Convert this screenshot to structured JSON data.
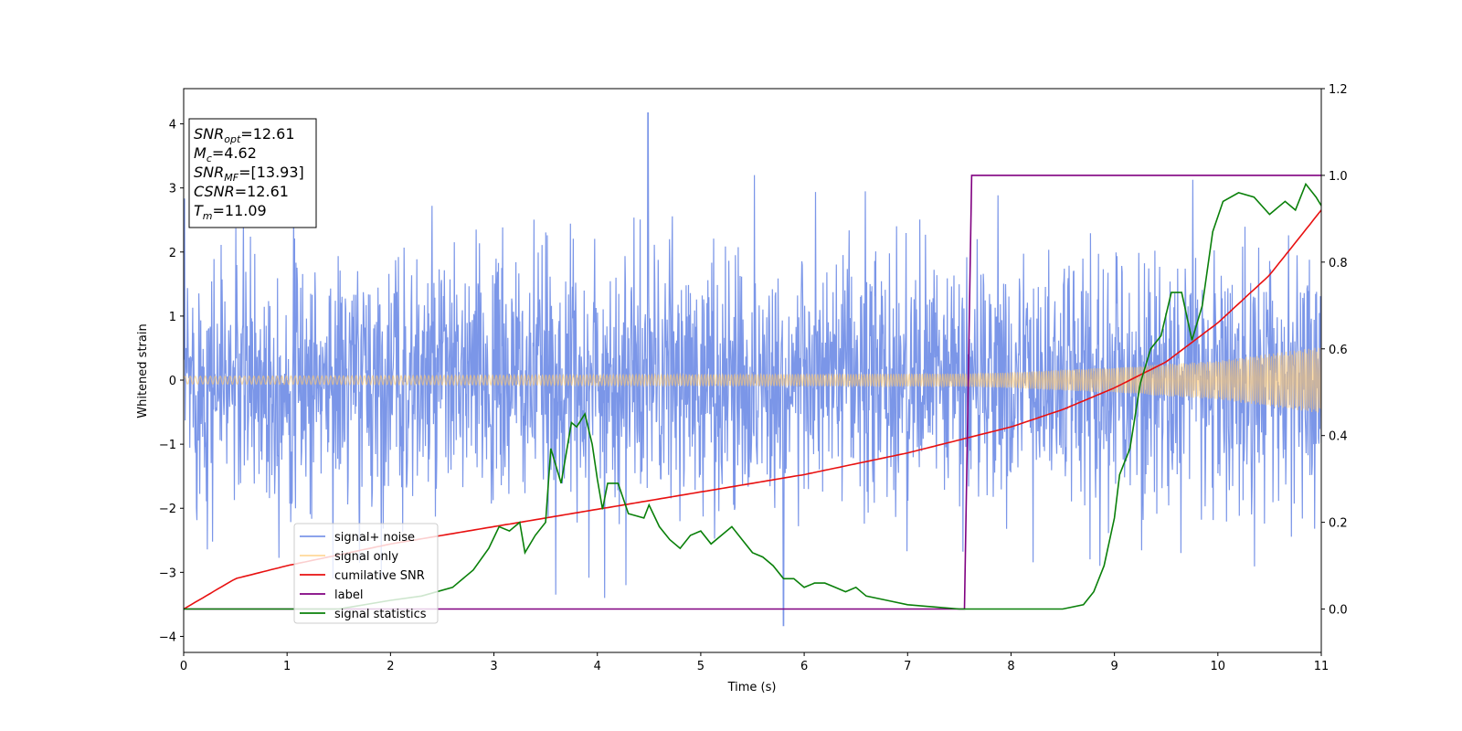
{
  "chart_data": {
    "type": "line",
    "xlabel": "Time (s)",
    "ylabel": "Whitened strain",
    "xlim": [
      0,
      11
    ],
    "ylim": [
      -4.25,
      4.55
    ],
    "y2lim": [
      -0.1,
      1.2
    ],
    "x_ticks": [
      "0",
      "1",
      "2",
      "3",
      "4",
      "5",
      "6",
      "7",
      "8",
      "9",
      "10",
      "11"
    ],
    "y_ticks": [
      "4",
      "3",
      "2",
      "1",
      "0",
      "−1",
      "−2",
      "−3",
      "−4"
    ],
    "y2_ticks": [
      "1.2",
      "1.0",
      "0.8",
      "0.6",
      "0.4",
      "0.2",
      "0.0"
    ],
    "legend_position": "lower-left",
    "annotations": [
      {
        "name": "SNR",
        "sub": "opt",
        "value": "=12.61"
      },
      {
        "name": "M",
        "sub": "c",
        "value": "=4.62"
      },
      {
        "name": "SNR",
        "sub": "MF",
        "value": "=[13.93]"
      },
      {
        "name": "CSNR",
        "sub": "",
        "value": "=12.61"
      },
      {
        "name": "T",
        "sub": "m",
        "value": "=11.09"
      }
    ],
    "series": [
      {
        "name": "signal+ noise",
        "color": "#7b96e8",
        "axis": "left",
        "description_type": "noise",
        "noise_sigma": 1.0,
        "max_peak": 4.17,
        "peak_at": 4.49,
        "min_trough": -3.83,
        "trough_at": 5.8
      },
      {
        "name": "signal only",
        "color": "#ffc86e",
        "axis": "left",
        "envelope_x": [
          0,
          7.5,
          8,
          9,
          10,
          11
        ],
        "envelope_amp": [
          0.06,
          0.1,
          0.12,
          0.2,
          0.3,
          0.52
        ]
      },
      {
        "name": "cumilative SNR",
        "color": "#e81010",
        "axis": "right",
        "x": [
          0,
          0.5,
          1,
          2,
          3,
          4,
          5,
          6,
          7,
          7.5,
          8,
          8.5,
          9,
          9.5,
          10,
          10.5,
          11
        ],
        "y": [
          0.0,
          0.07,
          0.1,
          0.15,
          0.19,
          0.23,
          0.27,
          0.31,
          0.36,
          0.39,
          0.42,
          0.46,
          0.51,
          0.57,
          0.66,
          0.77,
          0.92
        ]
      },
      {
        "name": "label",
        "color": "#800080",
        "axis": "right",
        "x": [
          0,
          7.55,
          7.62,
          11
        ],
        "y": [
          0,
          0,
          1,
          1
        ]
      },
      {
        "name": "signal statistics",
        "color": "#0a800a",
        "axis": "right",
        "x": [
          0,
          0.5,
          1,
          1.5,
          2,
          2.3,
          2.6,
          2.8,
          2.95,
          3.05,
          3.15,
          3.25,
          3.3,
          3.4,
          3.5,
          3.55,
          3.65,
          3.75,
          3.8,
          3.88,
          3.95,
          4.0,
          4.05,
          4.1,
          4.2,
          4.3,
          4.45,
          4.5,
          4.6,
          4.7,
          4.8,
          4.9,
          5.0,
          5.1,
          5.2,
          5.3,
          5.4,
          5.5,
          5.6,
          5.7,
          5.8,
          5.9,
          6.0,
          6.1,
          6.2,
          6.3,
          6.4,
          6.5,
          6.6,
          6.8,
          7.0,
          7.5,
          8,
          8.5,
          8.7,
          8.8,
          8.9,
          9.0,
          9.05,
          9.15,
          9.25,
          9.35,
          9.45,
          9.55,
          9.65,
          9.75,
          9.85,
          9.95,
          10.05,
          10.2,
          10.35,
          10.5,
          10.65,
          10.75,
          10.85,
          10.95,
          11.0
        ],
        "y": [
          0.0,
          0.0,
          0.0,
          0.0,
          0.02,
          0.03,
          0.05,
          0.09,
          0.14,
          0.19,
          0.18,
          0.2,
          0.13,
          0.17,
          0.2,
          0.37,
          0.29,
          0.43,
          0.42,
          0.45,
          0.38,
          0.3,
          0.23,
          0.29,
          0.29,
          0.22,
          0.21,
          0.24,
          0.19,
          0.16,
          0.14,
          0.17,
          0.18,
          0.15,
          0.17,
          0.19,
          0.16,
          0.13,
          0.12,
          0.1,
          0.07,
          0.07,
          0.05,
          0.06,
          0.06,
          0.05,
          0.04,
          0.05,
          0.03,
          0.02,
          0.01,
          0.0,
          0.0,
          0.0,
          0.01,
          0.04,
          0.1,
          0.21,
          0.31,
          0.37,
          0.52,
          0.6,
          0.63,
          0.73,
          0.73,
          0.62,
          0.7,
          0.87,
          0.94,
          0.96,
          0.95,
          0.91,
          0.94,
          0.92,
          0.98,
          0.95,
          0.93
        ]
      }
    ]
  }
}
